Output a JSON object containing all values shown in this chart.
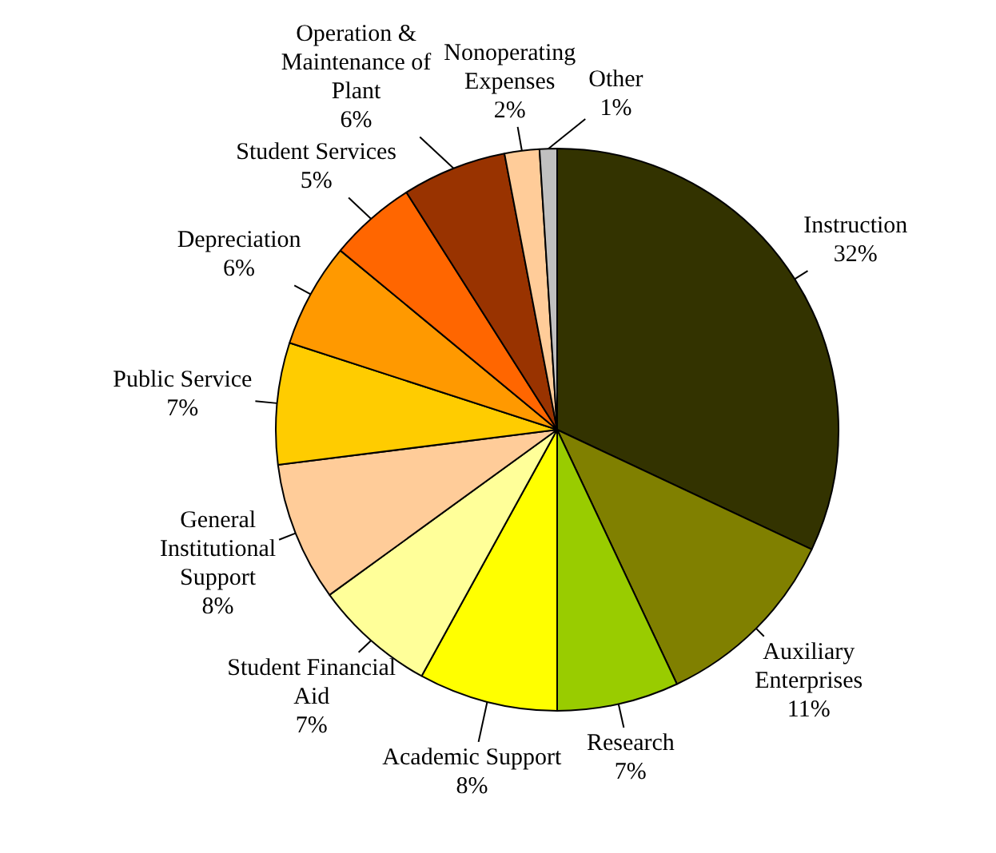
{
  "chart_data": {
    "type": "pie",
    "categories": [
      "Instruction",
      "Auxiliary Enterprises",
      "Research",
      "Academic Support",
      "Student Financial Aid",
      "General Institutional Support",
      "Public Service",
      "Depreciation",
      "Student Services",
      "Operation & Maintenance of Plant",
      "Nonoperating Expenses",
      "Other"
    ],
    "values": [
      32,
      11,
      7,
      8,
      7,
      8,
      7,
      6,
      5,
      6,
      2,
      1
    ],
    "value_labels": [
      "32%",
      "11%",
      "7%",
      "8%",
      "7%",
      "8%",
      "7%",
      "6%",
      "5%",
      "6%",
      "2%",
      "1%"
    ],
    "colors": [
      "#333300",
      "#808000",
      "#99cc00",
      "#ffff00",
      "#ffff99",
      "#ffcc99",
      "#ffcc00",
      "#ff9900",
      "#ff6600",
      "#993300",
      "#ffcc99",
      "#c0c0c0"
    ],
    "legend": false
  }
}
